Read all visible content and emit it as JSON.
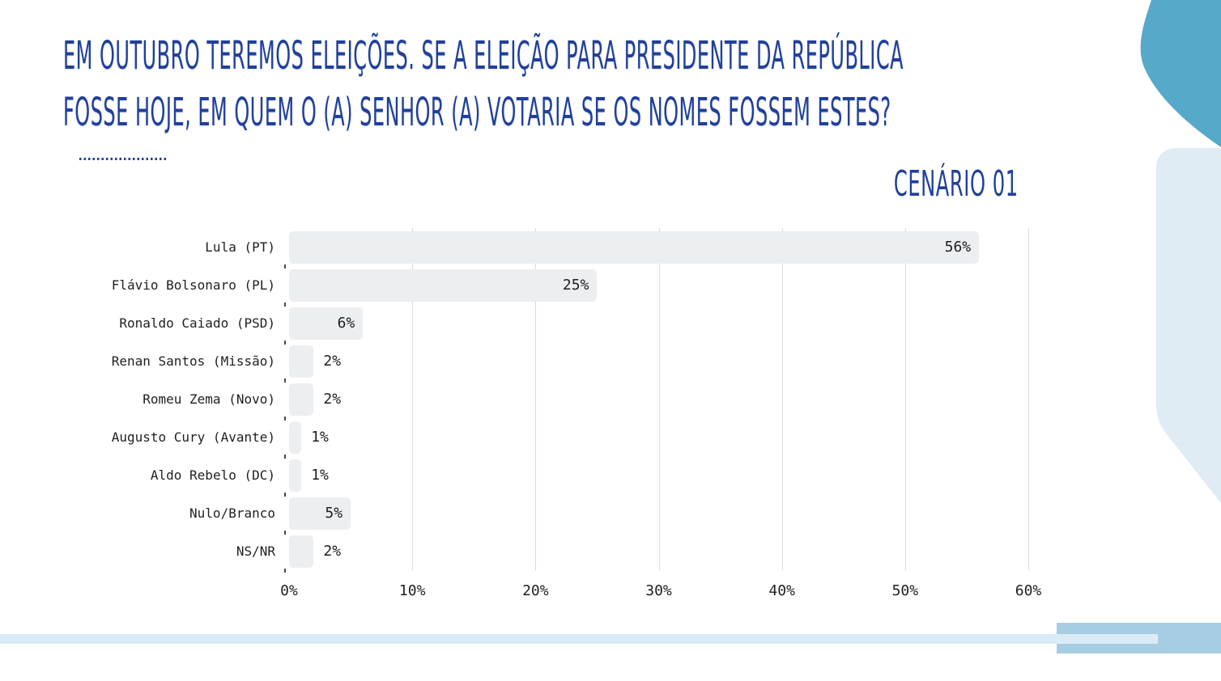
{
  "slide": {
    "title_line1": "EM OUTUBRO TEREMOS ELEIÇÕES. SE A ELEIÇÃO PARA PRESIDENTE DA REPÚBLICA",
    "title_line2": "FOSSE HOJE, EM QUEM O (A) SENHOR (A) VOTARIA SE OS NOMES FOSSEM ESTES?",
    "scenario_label": "CENÁRIO 01"
  },
  "colors": {
    "title_blue": "#20409a",
    "bar_fill": "#edeef0",
    "gridline": "#dbdbdb",
    "chart_text": "#1f1f1f",
    "teal_blob": "#56a9c8",
    "light_blue_blob": "#dfecf4",
    "bottom_band": "#d9ebf6",
    "bottom_right_rect": "#a6cde2"
  },
  "chart_data": {
    "type": "bar",
    "orientation": "horizontal",
    "title": "CENÁRIO 01",
    "categories": [
      "Lula (PT)",
      "Flávio Bolsonaro (PL)",
      "Ronaldo Caiado (PSD)",
      "Renan Santos (Missão)",
      "Romeu Zema (Novo)",
      "Augusto Cury (Avante)",
      "Aldo Rebelo (DC)",
      "Nulo/Branco",
      "NS/NR"
    ],
    "values": [
      56,
      25,
      6,
      2,
      2,
      1,
      1,
      5,
      2
    ],
    "value_labels": [
      "56%",
      "25%",
      "6%",
      "2%",
      "2%",
      "1%",
      "1%",
      "5%",
      "2%"
    ],
    "x_ticks": [
      "0%",
      "10%",
      "20%",
      "30%",
      "40%",
      "50%",
      "60%"
    ],
    "xlim": [
      0,
      60
    ],
    "xlabel": "",
    "ylabel": "",
    "grid": "vertical",
    "legend": "none",
    "inside_label_min_value": 5
  }
}
